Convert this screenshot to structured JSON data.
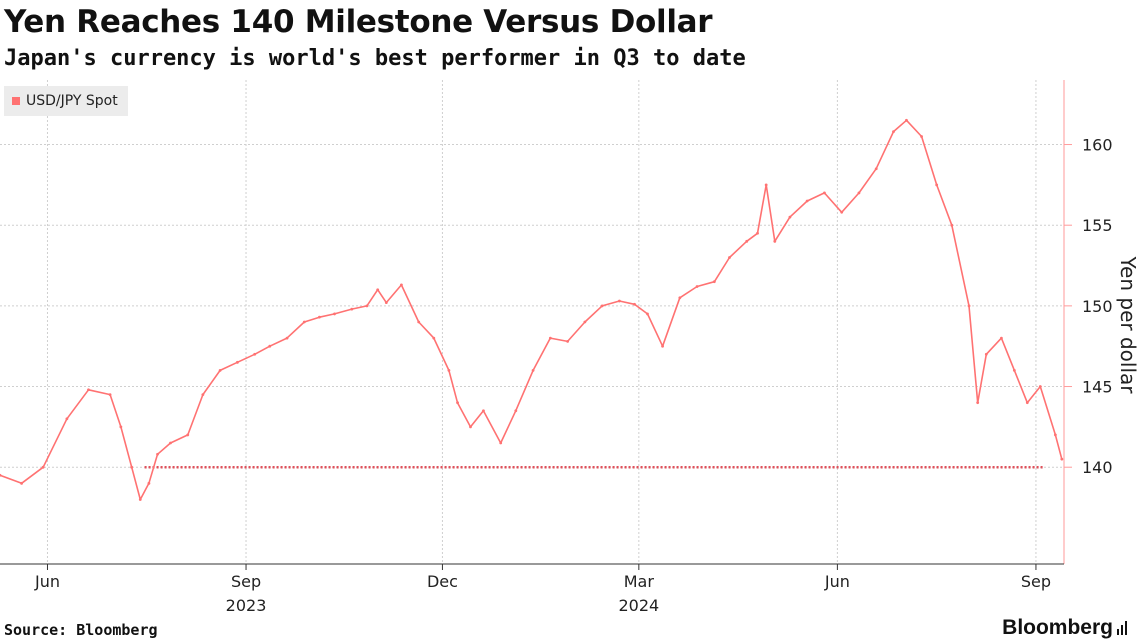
{
  "chart_data": {
    "type": "line",
    "title": "Yen Reaches 140 Milestone Versus Dollar",
    "subtitle": "Japan's currency is world's best performer in Q3 to date",
    "xlabel": "",
    "ylabel": "Yen per dollar",
    "ylim": [
      134,
      164
    ],
    "yticks": [
      140,
      145,
      150,
      155,
      160
    ],
    "x_tick_labels": [
      {
        "label": "Jun",
        "date": "2023-06-01"
      },
      {
        "label": "Sep",
        "date": "2023-09-01"
      },
      {
        "label": "Dec",
        "date": "2023-12-01"
      },
      {
        "label": "Mar",
        "date": "2024-03-01"
      },
      {
        "label": "Jun",
        "date": "2024-06-01"
      },
      {
        "label": "Sep",
        "date": "2024-09-01"
      }
    ],
    "year_labels": [
      {
        "label": "2023",
        "date": "2023-09-01"
      },
      {
        "label": "2024",
        "date": "2024-03-01"
      }
    ],
    "xlim": [
      "2023-05-10",
      "2024-09-14"
    ],
    "grid": true,
    "legend_position": "top-left",
    "reference_line": {
      "y": 140,
      "style": "dotted",
      "from": "2023-07-16"
    },
    "series": [
      {
        "name": "USD/JPY Spot",
        "color": "#ff7272",
        "x": [
          "2023-05-10",
          "2023-05-20",
          "2023-05-30",
          "2023-06-10",
          "2023-06-20",
          "2023-06-30",
          "2023-07-05",
          "2023-07-10",
          "2023-07-14",
          "2023-07-18",
          "2023-07-22",
          "2023-07-28",
          "2023-08-05",
          "2023-08-12",
          "2023-08-20",
          "2023-08-28",
          "2023-09-05",
          "2023-09-12",
          "2023-09-20",
          "2023-09-28",
          "2023-10-05",
          "2023-10-12",
          "2023-10-20",
          "2023-10-27",
          "2023-11-01",
          "2023-11-05",
          "2023-11-12",
          "2023-11-20",
          "2023-11-27",
          "2023-12-04",
          "2023-12-08",
          "2023-12-14",
          "2023-12-20",
          "2023-12-28",
          "2024-01-04",
          "2024-01-12",
          "2024-01-20",
          "2024-01-28",
          "2024-02-05",
          "2024-02-13",
          "2024-02-21",
          "2024-02-28",
          "2024-03-05",
          "2024-03-12",
          "2024-03-20",
          "2024-03-28",
          "2024-04-05",
          "2024-04-12",
          "2024-04-20",
          "2024-04-25",
          "2024-04-29",
          "2024-05-03",
          "2024-05-10",
          "2024-05-18",
          "2024-05-26",
          "2024-06-03",
          "2024-06-11",
          "2024-06-19",
          "2024-06-27",
          "2024-07-03",
          "2024-07-10",
          "2024-07-17",
          "2024-07-24",
          "2024-08-01",
          "2024-08-05",
          "2024-08-09",
          "2024-08-16",
          "2024-08-22",
          "2024-08-28",
          "2024-09-03",
          "2024-09-10",
          "2024-09-13"
        ],
        "values": [
          139.5,
          139.0,
          140.0,
          143.0,
          144.8,
          144.5,
          142.5,
          140.0,
          138.0,
          139.0,
          140.8,
          141.5,
          142.0,
          144.5,
          146.0,
          146.5,
          147.0,
          147.5,
          148.0,
          149.0,
          149.3,
          149.5,
          149.8,
          150.0,
          151.0,
          150.2,
          151.3,
          149.0,
          148.0,
          146.0,
          144.0,
          142.5,
          143.5,
          141.5,
          143.5,
          146.0,
          148.0,
          147.8,
          149.0,
          150.0,
          150.3,
          150.1,
          149.5,
          147.5,
          150.5,
          151.2,
          151.5,
          153.0,
          154.0,
          154.5,
          157.5,
          154.0,
          155.5,
          156.5,
          157.0,
          155.8,
          157.0,
          158.5,
          160.8,
          161.5,
          160.5,
          157.5,
          155.0,
          150.0,
          144.0,
          147.0,
          148.0,
          146.0,
          144.0,
          145.0,
          142.0,
          140.5
        ]
      }
    ]
  },
  "legend": {
    "items": [
      {
        "label": "USD/JPY Spot",
        "color": "#ff7272"
      }
    ]
  },
  "footer": {
    "source": "Source: Bloomberg",
    "brand": "Bloomberg"
  }
}
